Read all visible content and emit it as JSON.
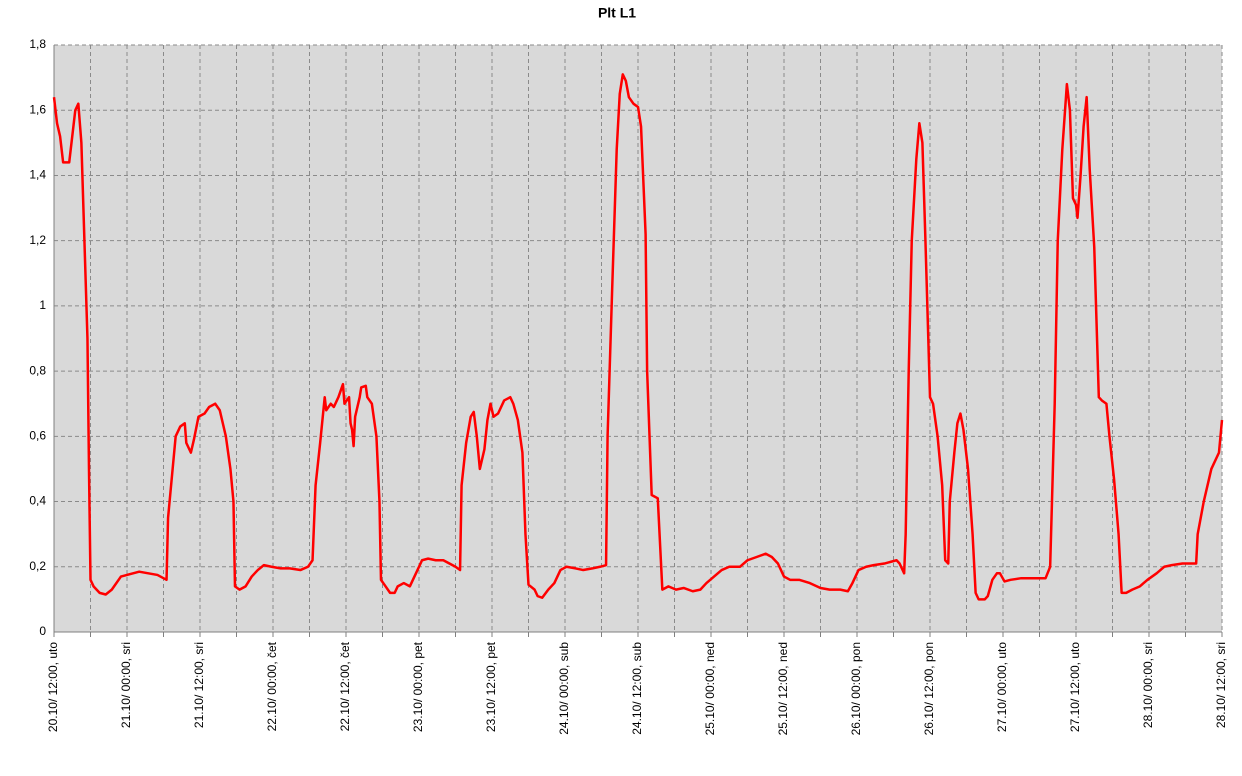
{
  "chart_data": {
    "type": "line",
    "title": "Plt L1",
    "color": "#ff0000",
    "grid": true,
    "xlim": [
      "20.10 12:00",
      "28.10 12:00"
    ],
    "xticks": [
      {
        "value": "20.10 12:00",
        "label": "20.10/ 12:00, uto"
      },
      {
        "value": "21.10 00:00",
        "label": "21.10/ 00:00, sri"
      },
      {
        "value": "21.10 12:00",
        "label": "21.10/ 12:00, sri"
      },
      {
        "value": "22.10 00:00",
        "label": "22.10/ 00:00, čet"
      },
      {
        "value": "22.10 12:00",
        "label": "22.10/ 12:00, čet"
      },
      {
        "value": "23.10 00:00",
        "label": "23.10/ 00:00, pet"
      },
      {
        "value": "23.10 12:00",
        "label": "23.10/ 12:00, pet"
      },
      {
        "value": "24.10 00:00",
        "label": "24.10/ 00:00, sub"
      },
      {
        "value": "24.10 12:00",
        "label": "24.10/ 12:00, sub"
      },
      {
        "value": "25.10 00:00",
        "label": "25.10/ 00:00, ned"
      },
      {
        "value": "25.10 12:00",
        "label": "25.10/ 12:00, ned"
      },
      {
        "value": "26.10 00:00",
        "label": "26.10/ 00:00, pon"
      },
      {
        "value": "26.10 12:00",
        "label": "26.10/ 12:00, pon"
      },
      {
        "value": "27.10 00:00",
        "label": "27.10/ 00:00, uto"
      },
      {
        "value": "27.10 12:00",
        "label": "27.10/ 12:00, uto"
      },
      {
        "value": "28.10 00:00",
        "label": "28.10/ 00:00, sri"
      },
      {
        "value": "28.10 12:00",
        "label": "28.10/ 12:00, sri"
      }
    ],
    "xminorticks": [
      "20.10 18:00",
      "21.10 06:00",
      "21.10 18:00",
      "22.10 06:00",
      "22.10 18:00",
      "23.10 06:00",
      "23.10 18:00",
      "24.10 06:00",
      "24.10 18:00",
      "25.10 06:00",
      "25.10 18:00",
      "26.10 06:00",
      "26.10 18:00",
      "27.10 06:00",
      "27.10 18:00",
      "28.10 06:00"
    ],
    "ylim": [
      0,
      1.8
    ],
    "yticks": [
      0,
      {
        "value": 0.2,
        "label": "0,2"
      },
      {
        "value": 0.4,
        "label": "0,4"
      },
      {
        "value": 0.6,
        "label": "0,6"
      },
      {
        "value": 0.8,
        "label": "0,8"
      },
      1,
      {
        "value": 1.2,
        "label": "1,2"
      },
      {
        "value": 1.4,
        "label": "1,4"
      },
      {
        "value": 1.6,
        "label": "1,6"
      },
      {
        "value": 1.8,
        "label": "1,8"
      }
    ],
    "x": [
      "20.10 12:00",
      "20.10 12:30",
      "20.10 13:00",
      "20.10 13:30",
      "20.10 14:30",
      "20.10 15:00",
      "20.10 15:30",
      "20.10 16:00",
      "20.10 16:30",
      "20.10 17:00",
      "20.10 17:30",
      "20.10 17:45",
      "20.10 18:00",
      "20.10 18:30",
      "20.10 19:30",
      "20.10 20:30",
      "20.10 21:30",
      "20.10 23:00",
      "21.10 00:00",
      "21.10 01:00",
      "21.10 02:00",
      "21.10 03:30",
      "21.10 05:00",
      "21.10 06:30",
      "21.10 06:45",
      "21.10 07:30",
      "21.10 08:00",
      "21.10 08:45",
      "21.10 09:30",
      "21.10 09:45",
      "21.10 10:30",
      "21.10 11:00",
      "21.10 11:45",
      "21.10 12:45",
      "21.10 13:30",
      "21.10 14:30",
      "21.10 15:15",
      "21.10 16:15",
      "21.10 17:00",
      "21.10 17:30",
      "21.10 17:45",
      "21.10 18:30",
      "21.10 19:30",
      "21.10 20:30",
      "21.10 21:30",
      "21.10 22:30",
      "21.10 23:45",
      "22.10 01:15",
      "22.10 02:45",
      "22.10 04:30",
      "22.10 05:45",
      "22.10 06:30",
      "22.10 07:00",
      "22.10 07:45",
      "22.10 08:30",
      "22.10 08:45",
      "22.10 09:30",
      "22.10 10:00",
      "22.10 10:45",
      "22.10 11:30",
      "22.10 11:45",
      "22.10 12:30",
      "22.10 12:45",
      "22.10 13:00",
      "22.10 13:15",
      "22.10 13:30",
      "22.10 14:15",
      "22.10 14:30",
      "22.10 15:15",
      "22.10 15:30",
      "22.10 16:15",
      "22.10 17:00",
      "22.10 17:30",
      "22.10 17:45",
      "22.10 18:30",
      "22.10 19:15",
      "22.10 20:00",
      "22.10 20:30",
      "22.10 21:30",
      "22.10 22:30",
      "22.10 23:30",
      "23.10 00:30",
      "23.10 01:30",
      "23.10 02:45",
      "23.10 04:00",
      "23.10 05:00",
      "23.10 06:00",
      "23.10 06:45",
      "23.10 07:00",
      "23.10 07:45",
      "23.10 08:30",
      "23.10 09:00",
      "23.10 09:30",
      "23.10 10:00",
      "23.10 10:45",
      "23.10 11:15",
      "23.10 11:45",
      "23.10 12:15",
      "23.10 13:00",
      "23.10 14:00",
      "23.10 15:00",
      "23.10 15:30",
      "23.10 16:15",
      "23.10 17:00",
      "23.10 17:30",
      "23.10 18:00",
      "23.10 19:00",
      "23.10 19:30",
      "23.10 20:15",
      "23.10 21:15",
      "23.10 22:15",
      "23.10 23:15",
      "24.10 00:15",
      "24.10 01:45",
      "24.10 03:00",
      "24.10 04:30",
      "24.10 05:45",
      "24.10 06:45",
      "24.10 07:00",
      "24.10 07:45",
      "24.10 08:30",
      "24.10 09:00",
      "24.10 09:30",
      "24.10 10:00",
      "24.10 10:30",
      "24.10 11:15",
      "24.10 12:00",
      "24.10 12:30",
      "24.10 13:15",
      "24.10 13:30",
      "24.10 14:15",
      "24.10 15:15",
      "24.10 16:00",
      "24.10 17:00",
      "24.10 18:15",
      "24.10 19:30",
      "24.10 21:00",
      "24.10 22:15",
      "24.10 23:15",
      "25.10 00:30",
      "25.10 01:45",
      "25.10 03:00",
      "25.10 04:45",
      "25.10 06:00",
      "25.10 07:30",
      "25.10 09:00",
      "25.10 10:00",
      "25.10 11:00",
      "25.10 12:00",
      "25.10 13:00",
      "25.10 14:30",
      "25.10 16:15",
      "25.10 18:00",
      "25.10 19:30",
      "25.10 21:15",
      "25.10 22:30",
      "25.10 23:15",
      "26.10 00:15",
      "26.10 01:30",
      "26.10 02:45",
      "26.10 04:30",
      "26.10 05:30",
      "26.10 06:30",
      "26.10 07:00",
      "26.10 07:45",
      "26.10 08:00",
      "26.10 08:30",
      "26.10 09:00",
      "26.10 09:45",
      "26.10 10:15",
      "26.10 10:45",
      "26.10 11:15",
      "26.10 12:00",
      "26.10 12:30",
      "26.10 13:15",
      "26.10 14:00",
      "26.10 14:30",
      "26.10 15:00",
      "26.10 15:15",
      "26.10 16:00",
      "26.10 16:30",
      "26.10 17:00",
      "26.10 17:30",
      "26.10 18:15",
      "26.10 19:00",
      "26.10 19:30",
      "26.10 20:00",
      "26.10 21:00",
      "26.10 21:30",
      "26.10 22:15",
      "26.10 23:00",
      "26.10 23:30",
      "27.10 00:15",
      "27.10 01:15",
      "27.10 03:00",
      "27.10 04:30",
      "27.10 06:00",
      "27.10 07:00",
      "27.10 07:45",
      "27.10 08:30",
      "27.10 09:00",
      "27.10 09:45",
      "27.10 10:30",
      "27.10 11:00",
      "27.10 11:30",
      "27.10 12:00",
      "27.10 12:15",
      "27.10 12:45",
      "27.10 13:15",
      "27.10 13:45",
      "27.10 14:15",
      "27.10 15:00",
      "27.10 15:45",
      "27.10 16:15",
      "27.10 17:00",
      "27.10 17:30",
      "27.10 18:15",
      "27.10 19:00",
      "27.10 19:30",
      "27.10 20:15",
      "27.10 21:15",
      "27.10 22:30",
      "27.10 23:45",
      "28.10 01:15",
      "28.10 02:30",
      "28.10 03:45",
      "28.10 05:30",
      "28.10 07:45",
      "28.10 08:00",
      "28.10 09:00",
      "28.10 10:15",
      "28.10 11:30",
      "28.10 12:00"
    ],
    "values": [
      1.64,
      1.56,
      1.52,
      1.44,
      1.44,
      1.52,
      1.6,
      1.62,
      1.5,
      1.2,
      0.9,
      0.5,
      0.16,
      0.14,
      0.12,
      0.115,
      0.13,
      0.17,
      0.175,
      0.18,
      0.185,
      0.18,
      0.175,
      0.16,
      0.35,
      0.5,
      0.6,
      0.63,
      0.64,
      0.58,
      0.55,
      0.59,
      0.66,
      0.67,
      0.69,
      0.7,
      0.68,
      0.6,
      0.5,
      0.4,
      0.14,
      0.13,
      0.14,
      0.17,
      0.19,
      0.205,
      0.2,
      0.195,
      0.195,
      0.19,
      0.2,
      0.22,
      0.45,
      0.58,
      0.72,
      0.68,
      0.7,
      0.69,
      0.72,
      0.76,
      0.7,
      0.72,
      0.64,
      0.62,
      0.57,
      0.66,
      0.72,
      0.75,
      0.755,
      0.72,
      0.7,
      0.6,
      0.4,
      0.16,
      0.14,
      0.12,
      0.12,
      0.14,
      0.15,
      0.14,
      0.18,
      0.22,
      0.225,
      0.22,
      0.22,
      0.21,
      0.2,
      0.19,
      0.45,
      0.58,
      0.66,
      0.675,
      0.6,
      0.5,
      0.56,
      0.65,
      0.7,
      0.66,
      0.67,
      0.71,
      0.72,
      0.7,
      0.65,
      0.55,
      0.3,
      0.145,
      0.13,
      0.11,
      0.105,
      0.13,
      0.15,
      0.19,
      0.2,
      0.195,
      0.19,
      0.195,
      0.2,
      0.205,
      0.6,
      1.05,
      1.48,
      1.65,
      1.71,
      1.69,
      1.64,
      1.62,
      1.61,
      1.55,
      1.22,
      0.8,
      0.42,
      0.41,
      0.13,
      0.14,
      0.13,
      0.135,
      0.125,
      0.13,
      0.15,
      0.17,
      0.19,
      0.2,
      0.2,
      0.22,
      0.23,
      0.24,
      0.23,
      0.21,
      0.17,
      0.16,
      0.16,
      0.15,
      0.135,
      0.13,
      0.13,
      0.125,
      0.15,
      0.19,
      0.2,
      0.205,
      0.21,
      0.215,
      0.22,
      0.21,
      0.18,
      0.3,
      0.8,
      1.2,
      1.45,
      1.56,
      1.5,
      1.2,
      0.72,
      0.7,
      0.6,
      0.45,
      0.22,
      0.21,
      0.4,
      0.55,
      0.64,
      0.67,
      0.62,
      0.5,
      0.3,
      0.12,
      0.1,
      0.1,
      0.11,
      0.16,
      0.18,
      0.18,
      0.155,
      0.16,
      0.165,
      0.165,
      0.165,
      0.165,
      0.2,
      0.7,
      1.2,
      1.48,
      1.68,
      1.6,
      1.33,
      1.31,
      1.27,
      1.4,
      1.55,
      1.64,
      1.42,
      1.18,
      0.72,
      0.71,
      0.7,
      0.6,
      0.47,
      0.3,
      0.12,
      0.12,
      0.13,
      0.14,
      0.16,
      0.18,
      0.2,
      0.205,
      0.21,
      0.21,
      0.3,
      0.4,
      0.5,
      0.55,
      0.65
    ]
  }
}
